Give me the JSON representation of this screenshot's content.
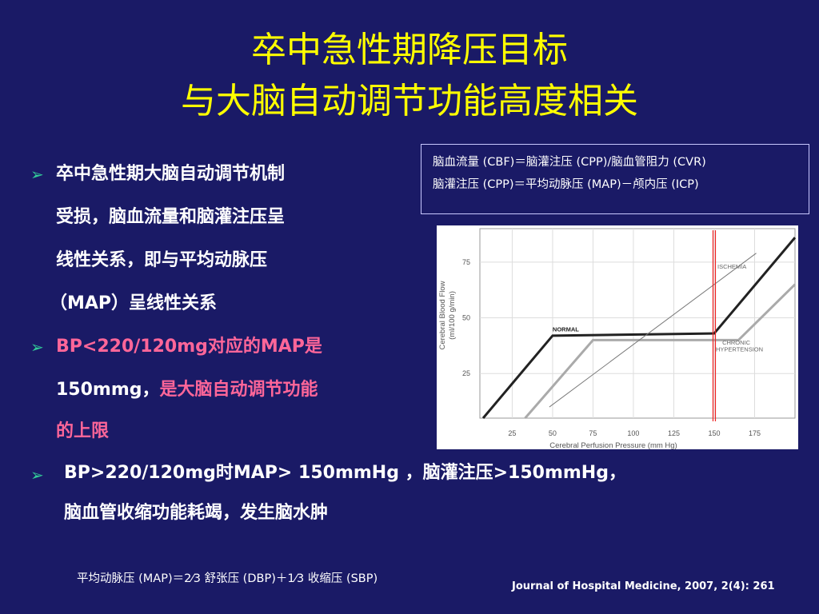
{
  "slide": {
    "title_line1": "卒中急性期降压目标",
    "title_line2": "与大脑自动调节功能高度相关"
  },
  "formula_box": {
    "line1": "脑血流量 (CBF)＝脑灌注压 (CPP)/脑血管阻力 (CVR)",
    "line2": "脑灌注压 (CPP)＝平均动脉压 (MAP)－颅内压 (ICP)"
  },
  "bullets": {
    "b1_l1": "卒中急性期大脑自动调节机制",
    "b1_l2": "受损，脑血流量和脑灌注压呈",
    "b1_l3": "线性关系，即与平均动脉压",
    "b1_l4": "（MAP）呈线性关系",
    "b2_l1": "BP<220/120mg对应的MAP是",
    "b2_l2a": "150mmg，",
    "b2_l2b": "是大脑自动调节功能",
    "b2_l3": "的上限",
    "b3_l1": "BP>220/120mg时MAP> 150mmHg ，脑灌注压>150mmHg，",
    "b3_l2": "脑血管收缩功能耗竭，发生脑水肿"
  },
  "footer": {
    "formula": "平均动脉压 (MAP)＝2⁄3 舒张压 (DBP)＋1⁄3 收缩压 (SBP)",
    "journal": "Journal of Hospital Medicine, 2007, 2(4): 261"
  },
  "colors": {
    "background": "#1a1a66",
    "title": "#ffff00",
    "highlight": "#ff6699",
    "bullet_arrow": "#33cc99",
    "normal_line": "#222222",
    "chronic_line": "#aaaaaa",
    "ischemia_line": "#777777",
    "marker_line": "#ee2222"
  },
  "chart_data": {
    "type": "line",
    "xlabel": "Cerebral Perfusion Pressure (mm Hg)",
    "ylabel": "Cerebral Blood Flow (ml/100 g/min)",
    "xticks": [
      25,
      50,
      75,
      100,
      125,
      150,
      175
    ],
    "yticks": [
      25,
      50,
      75
    ],
    "xlim": [
      5,
      200
    ],
    "ylim": [
      5,
      90
    ],
    "grid": true,
    "series": [
      {
        "name": "NORMAL",
        "x": [
          7,
          50,
          150,
          200
        ],
        "y": [
          5,
          42,
          43,
          86
        ]
      },
      {
        "name": "CHRONIC HYPERTENSION",
        "x": [
          33,
          75,
          165,
          200
        ],
        "y": [
          5,
          40,
          40,
          65
        ]
      },
      {
        "name": "ISCHEMIA",
        "x": [
          48,
          176
        ],
        "y": [
          10,
          79
        ]
      }
    ],
    "annotations": [
      {
        "text": "NORMAL",
        "x": 50,
        "y": 44
      },
      {
        "text": "ISCHEMIA",
        "x": 152,
        "y": 72
      },
      {
        "text": "CHRONIC",
        "x": 155,
        "y": 38
      },
      {
        "text": "HYPERTENSION",
        "x": 151,
        "y": 35
      }
    ],
    "marker_x": 150
  }
}
